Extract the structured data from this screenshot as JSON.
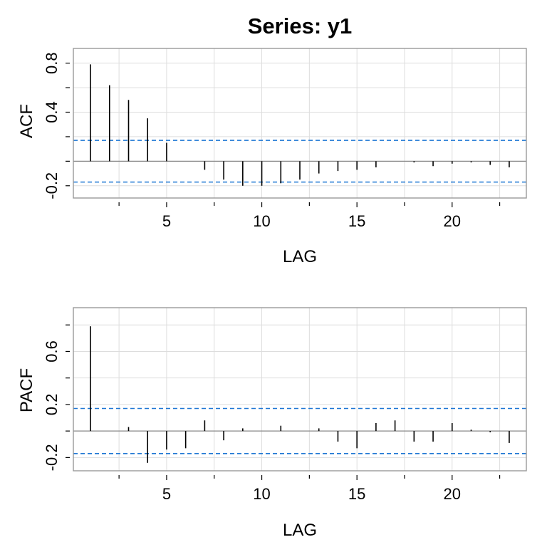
{
  "chart_data": [
    {
      "type": "bar",
      "title": "Series:  y1",
      "xlabel": "LAG",
      "ylabel": "ACF",
      "xlim": [
        0.1,
        23.9
      ],
      "ylim": [
        -0.3,
        0.92
      ],
      "xticks": [
        5,
        10,
        15,
        20
      ],
      "yticks": [
        -0.2,
        0.4,
        0.8
      ],
      "ytick_labels": [
        "-0.2",
        "0.4",
        "0.8"
      ],
      "grid": true,
      "lag": [
        1,
        2,
        3,
        4,
        5,
        6,
        7,
        8,
        9,
        10,
        11,
        12,
        13,
        14,
        15,
        16,
        17,
        18,
        19,
        20,
        21,
        22,
        23
      ],
      "values": [
        0.79,
        0.62,
        0.5,
        0.35,
        0.15,
        0.0,
        -0.07,
        -0.15,
        -0.2,
        -0.2,
        -0.18,
        -0.15,
        -0.1,
        -0.08,
        -0.07,
        -0.05,
        0.0,
        -0.01,
        -0.04,
        -0.02,
        -0.01,
        -0.03,
        -0.05
      ],
      "confidence_bound": 0.17,
      "bound_color": "#1f77d4",
      "bar_color": "#000000"
    },
    {
      "type": "bar",
      "title": "",
      "xlabel": "LAG",
      "ylabel": "PACF",
      "xlim": [
        0.1,
        23.9
      ],
      "ylim": [
        -0.3,
        0.93
      ],
      "xticks": [
        5,
        10,
        15,
        20
      ],
      "yticks": [
        -0.2,
        0.2,
        0.6
      ],
      "ytick_labels": [
        "-0.2",
        "0.2",
        "0.6"
      ],
      "grid": true,
      "lag": [
        1,
        2,
        3,
        4,
        5,
        6,
        7,
        8,
        9,
        10,
        11,
        12,
        13,
        14,
        15,
        16,
        17,
        18,
        19,
        20,
        21,
        22,
        23
      ],
      "values": [
        0.79,
        0.0,
        0.03,
        -0.24,
        -0.14,
        -0.13,
        0.08,
        -0.07,
        0.02,
        0.0,
        0.04,
        0.0,
        0.02,
        -0.08,
        -0.13,
        0.06,
        0.08,
        -0.08,
        -0.08,
        0.06,
        0.01,
        -0.01,
        -0.09
      ],
      "confidence_bound": 0.17,
      "bound_color": "#1f77d4",
      "bar_color": "#000000"
    }
  ]
}
